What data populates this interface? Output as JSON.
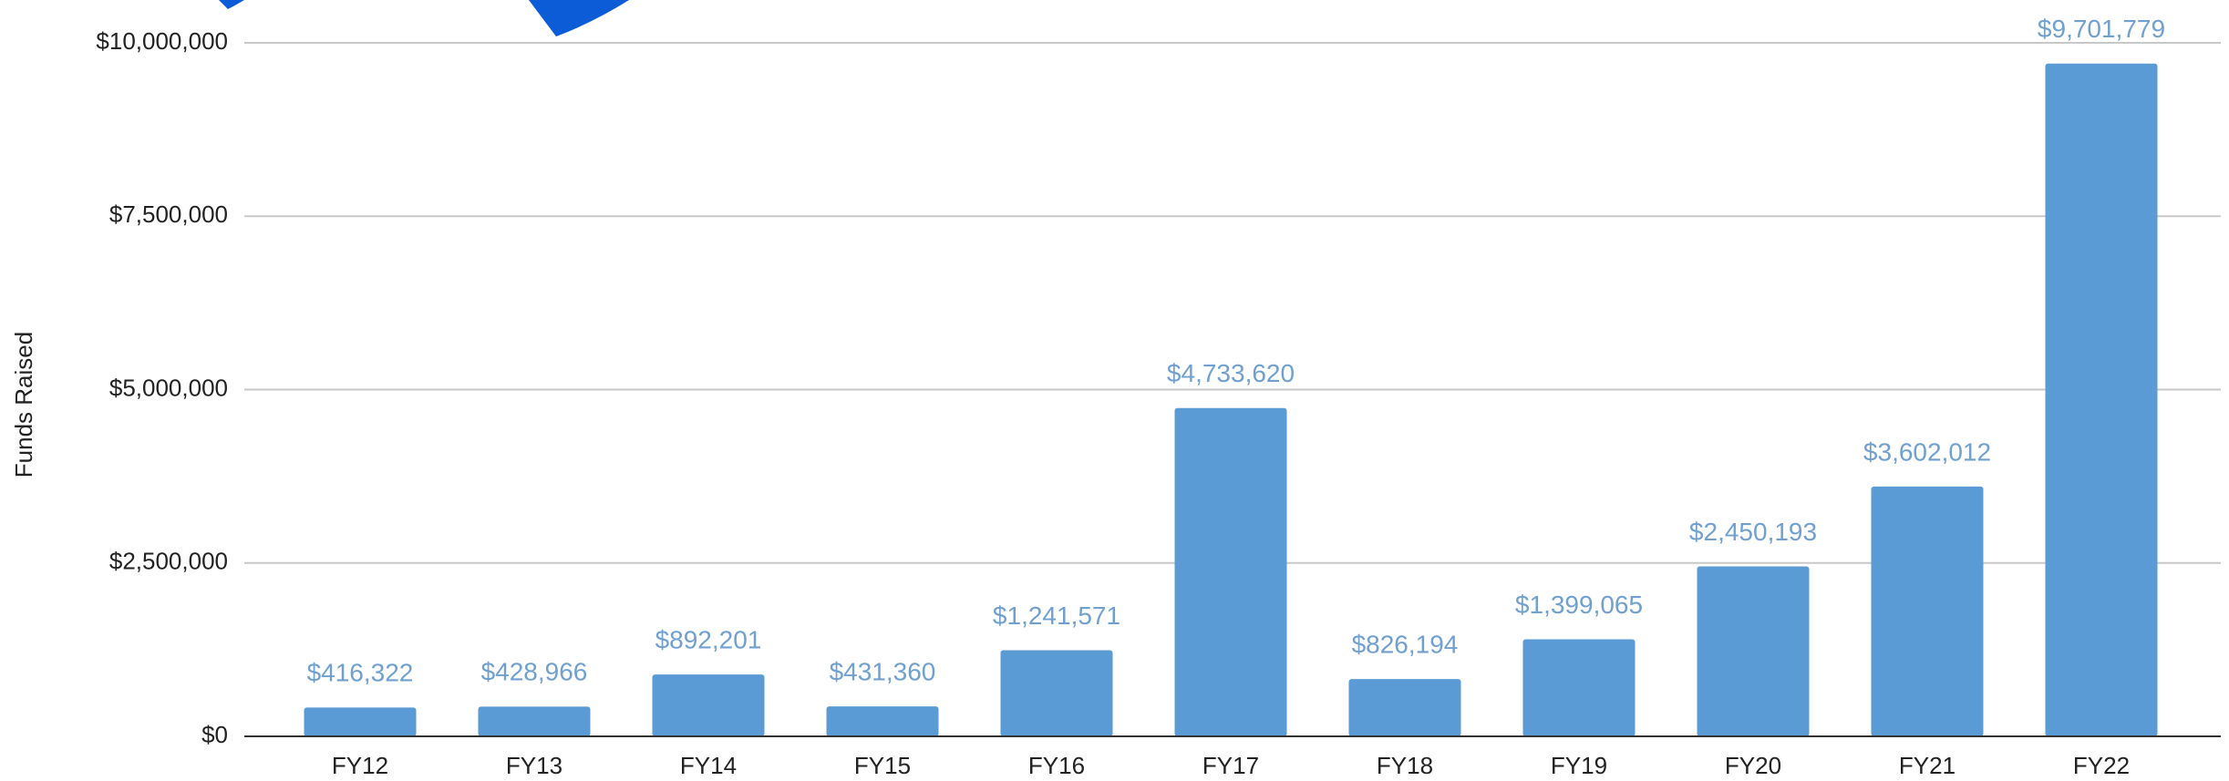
{
  "chart_data": {
    "type": "bar",
    "y_axis_label": "Funds Raised",
    "categories": [
      "FY12",
      "FY13",
      "FY14",
      "FY15",
      "FY16",
      "FY17",
      "FY18",
      "FY19",
      "FY20",
      "FY21",
      "FY22"
    ],
    "values": [
      416322,
      428966,
      892201,
      431360,
      1241571,
      4733620,
      826194,
      1399065,
      2450193,
      3602012,
      9701779
    ],
    "value_labels": [
      "$416,322",
      "$428,966",
      "$892,201",
      "$431,360",
      "$1,241,571",
      "$4,733,620",
      "$826,194",
      "$1,399,065",
      "$2,450,193",
      "$3,602,012",
      "$9,701,779"
    ],
    "color": "#5b9bd5",
    "ylim": [
      0,
      10000000
    ],
    "yticks": [
      {
        "value": 0,
        "label": "$0"
      },
      {
        "value": 2500000,
        "label": "$2,500,000"
      },
      {
        "value": 5000000,
        "label": "$5,000,000"
      },
      {
        "value": 7500000,
        "label": "$7,500,000"
      },
      {
        "value": 10000000,
        "label": "$10,000,000"
      }
    ],
    "grid": true
  }
}
